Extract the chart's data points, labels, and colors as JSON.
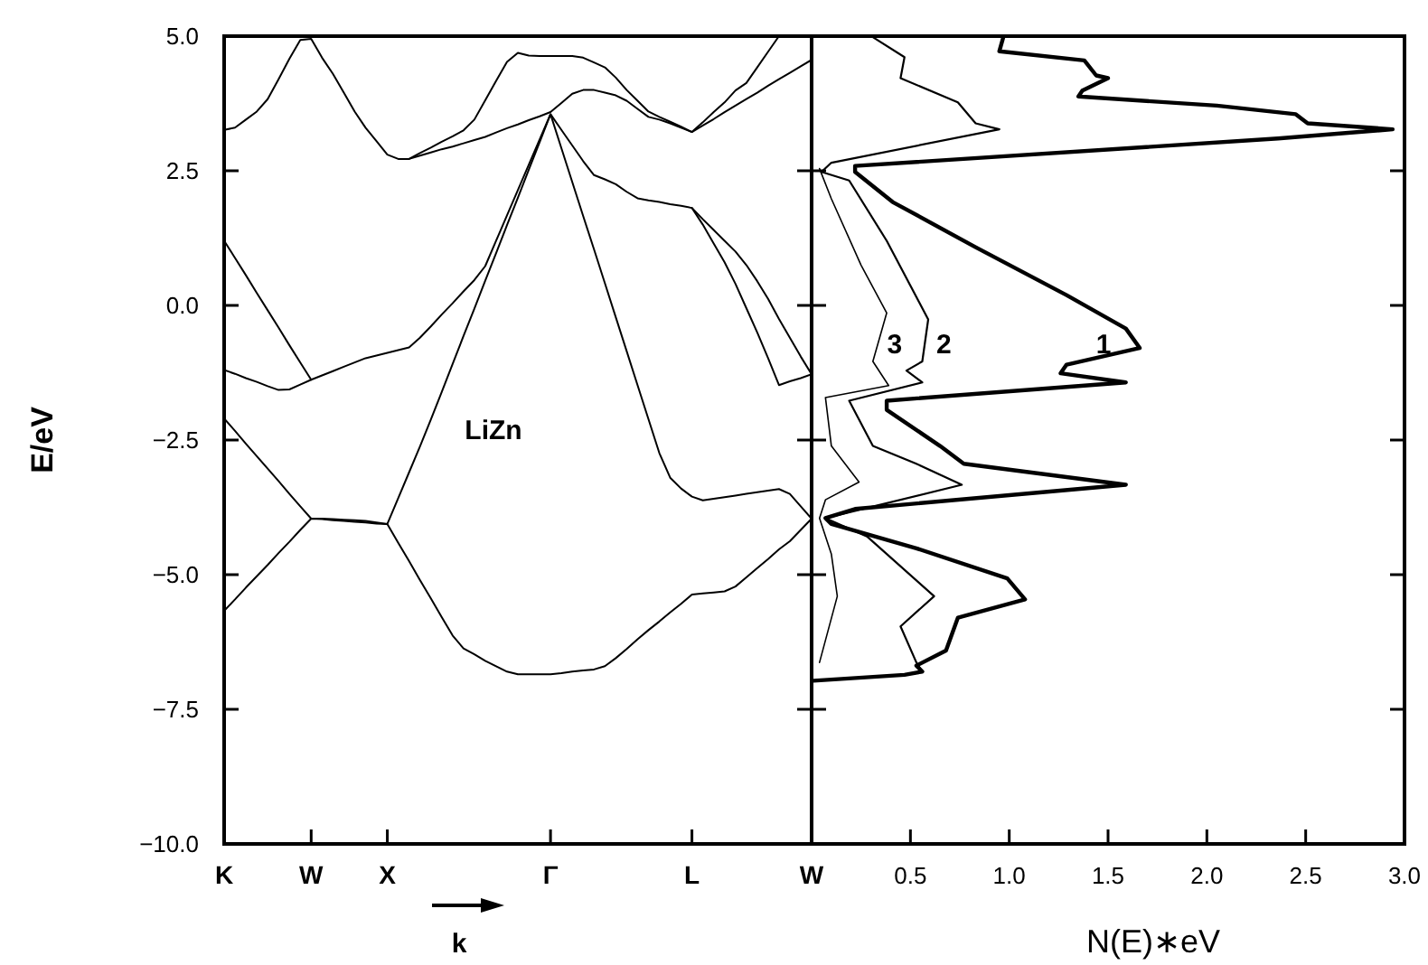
{
  "chart_data": [
    {
      "type": "line",
      "xlabel": "k",
      "ylabel": "E/eV",
      "annotations": [
        "LiZn"
      ],
      "categories": [
        "K",
        null,
        null,
        null,
        null,
        null,
        null,
        null,
        "W",
        null,
        null,
        null,
        null,
        null,
        null,
        "X",
        null,
        null,
        null,
        null,
        null,
        null,
        null,
        null,
        null,
        null,
        null,
        null,
        null,
        null,
        "Γ",
        null,
        null,
        null,
        null,
        null,
        null,
        null,
        null,
        null,
        null,
        null,
        null,
        "L",
        null,
        null,
        null,
        null,
        null,
        null,
        null,
        null,
        null,
        null,
        "W"
      ],
      "ylim": [
        -10,
        5
      ],
      "yticks": [
        {
          "value": 5,
          "label": "5.0"
        },
        {
          "value": 2.5,
          "label": "2.5"
        },
        {
          "value": 0,
          "label": "0.0"
        },
        {
          "value": -2.5,
          "label": "−2.5"
        },
        {
          "value": -5,
          "label": "−5.0"
        },
        {
          "value": -7.5,
          "label": "−7.5"
        },
        {
          "value": -10,
          "label": "−10.0"
        }
      ],
      "series": [
        {
          "color": "#000000",
          "values": [
            -5.67,
            -5.46,
            -5.24,
            -5.03,
            -4.82,
            -4.6,
            -4.39,
            -4.17,
            -3.96,
            -3.97,
            -3.99,
            -4.0,
            -4.02,
            -4.03,
            -4.05,
            -4.06,
            -4.41,
            -4.75,
            -5.1,
            -5.44,
            -5.79,
            -6.13,
            -6.37,
            -6.48,
            -6.6,
            -6.7,
            -6.8,
            -6.85,
            -6.85,
            -6.85,
            -6.85,
            -6.83,
            -6.8,
            -6.78,
            -6.76,
            -6.7,
            -6.55,
            -6.38,
            -6.2,
            -6.03,
            -5.87,
            -5.7,
            -5.54,
            -5.37,
            -5.35,
            -5.33,
            -5.31,
            -5.22,
            -5.05,
            -4.88,
            -4.71,
            -4.53,
            -4.38,
            -4.17,
            -3.96
          ]
        },
        {
          "color": "#000000",
          "values": [
            -2.1,
            -2.33,
            -2.57,
            -2.8,
            -3.03,
            -3.26,
            -3.5,
            -3.73,
            -3.96,
            -3.96,
            -3.97,
            -3.98,
            -3.99,
            -4.0,
            -4.03,
            -4.06,
            -3.58,
            -3.1,
            -2.62,
            -2.12,
            -1.61,
            -1.09,
            -0.57,
            -0.06,
            0.46,
            0.97,
            1.49,
            2.0,
            2.52,
            3.03,
            3.55,
            2.92,
            2.29,
            1.66,
            1.04,
            0.41,
            -0.22,
            -0.85,
            -1.48,
            -2.11,
            -2.74,
            -3.2,
            -3.4,
            -3.55,
            -3.62,
            -3.59,
            -3.56,
            -3.53,
            -3.5,
            -3.47,
            -3.44,
            -3.41,
            -3.5,
            -3.73,
            -3.96
          ]
        },
        {
          "color": "#000000",
          "values": [
            1.2,
            0.88,
            0.56,
            0.23,
            -0.09,
            -0.41,
            -0.74,
            -1.06,
            -1.38,
            -1.3,
            -1.22,
            -1.14,
            -1.06,
            -0.98,
            -0.93,
            -0.88,
            -0.83,
            -0.78,
            -0.6,
            -0.39,
            -0.17,
            0.04,
            0.26,
            0.47,
            0.73,
            1.2,
            1.67,
            2.14,
            2.61,
            3.08,
            3.55,
            3.26,
            2.97,
            2.68,
            2.42,
            2.34,
            2.25,
            2.11,
            1.99,
            1.95,
            1.92,
            1.88,
            1.85,
            1.81,
            1.5,
            1.15,
            0.8,
            0.4,
            -0.05,
            -0.5,
            -0.98,
            -1.48,
            -1.41,
            -1.35,
            -1.28
          ]
        },
        {
          "color": "#000000",
          "values": [
            -1.2,
            -1.27,
            -1.35,
            -1.42,
            -1.5,
            -1.57,
            -1.56,
            -1.47,
            -1.38,
            null,
            null,
            null,
            null,
            null,
            null,
            null,
            null,
            null,
            null,
            null,
            null,
            null,
            null,
            null,
            null,
            null,
            null,
            null,
            null,
            null,
            null,
            null,
            null,
            null,
            null,
            null,
            null,
            null,
            null,
            null,
            null,
            null,
            null,
            null,
            null,
            null,
            null,
            null,
            null,
            null,
            null,
            null,
            null,
            null,
            null
          ]
        },
        {
          "color": "#000000",
          "values": [
            null,
            null,
            null,
            null,
            null,
            null,
            null,
            null,
            null,
            null,
            null,
            null,
            null,
            null,
            null,
            null,
            null,
            null,
            null,
            null,
            null,
            null,
            null,
            null,
            null,
            null,
            null,
            null,
            null,
            null,
            null,
            null,
            null,
            null,
            null,
            null,
            null,
            null,
            null,
            null,
            null,
            null,
            null,
            1.81,
            1.6,
            1.4,
            1.2,
            1.0,
            0.75,
            0.45,
            0.12,
            -0.25,
            -0.6,
            -0.95,
            -1.28
          ]
        },
        {
          "color": "#000000",
          "values": [
            3.26,
            3.3,
            3.45,
            3.6,
            3.83,
            4.2,
            4.58,
            4.93,
            4.95,
            4.6,
            4.3,
            3.95,
            3.6,
            3.3,
            3.05,
            2.8,
            2.72,
            2.72,
            2.78,
            2.84,
            2.9,
            2.95,
            3.01,
            3.07,
            3.13,
            3.21,
            3.29,
            3.36,
            3.44,
            3.51,
            3.59,
            3.76,
            3.93,
            4.0,
            4.0,
            3.95,
            3.9,
            3.8,
            3.65,
            3.5,
            3.45,
            3.38,
            3.3,
            3.22,
            3.34,
            3.46,
            3.59,
            3.71,
            3.83,
            3.95,
            4.08,
            4.2,
            4.32,
            4.44,
            4.56
          ]
        },
        {
          "color": "#000000",
          "values": [
            null,
            null,
            null,
            null,
            null,
            null,
            null,
            null,
            null,
            null,
            null,
            null,
            null,
            null,
            null,
            null,
            null,
            2.72,
            2.83,
            2.93,
            3.04,
            3.14,
            3.25,
            3.45,
            3.81,
            4.17,
            4.52,
            4.69,
            4.64,
            4.63,
            4.63,
            4.63,
            4.63,
            4.6,
            4.51,
            4.42,
            4.23,
            4.0,
            3.8,
            3.6,
            3.5,
            3.41,
            3.32,
            3.22,
            3.4,
            3.59,
            3.77,
            3.99,
            4.13,
            4.42,
            4.71,
            5.0,
            null,
            null,
            null
          ]
        }
      ]
    },
    {
      "type": "line",
      "xlabel": "N(E)∗eV",
      "tick_labels": "x",
      "xlim": [
        0,
        3
      ],
      "xticks": [
        {
          "value": 0.5,
          "label": "0.5"
        },
        {
          "value": 1,
          "label": "1.0"
        },
        {
          "value": 1.5,
          "label": "1.5"
        },
        {
          "value": 2,
          "label": "2.0"
        },
        {
          "value": 2.5,
          "label": "2.5"
        },
        {
          "value": 3,
          "label": "3.0"
        }
      ],
      "ylim": [
        -10,
        5
      ],
      "yticks": [
        5,
        2.5,
        0,
        -2.5,
        -5,
        -7.5,
        -10
      ],
      "series": [
        {
          "name": "1",
          "color": "#000000",
          "x": [
            0.97,
            0.95,
            1.38,
            1.44,
            1.5,
            1.37,
            1.35,
            2.05,
            2.45,
            2.51,
            2.94,
            2.36,
            0.22,
            0.22,
            0.41,
            0.83,
            1.29,
            1.59,
            1.66,
            1.29,
            1.26,
            1.59,
            0.38,
            0.38,
            0.65,
            0.77,
            1.59,
            0.22,
            0.07,
            0.1,
            0.53,
            0.99,
            1.08,
            0.74,
            0.68,
            0.53,
            0.56,
            0.47,
            0.01
          ],
          "values": [
            4.98,
            4.72,
            4.55,
            4.27,
            4.22,
            3.99,
            3.88,
            3.71,
            3.55,
            3.38,
            3.27,
            3.1,
            2.59,
            2.48,
            1.92,
            1.08,
            0.19,
            -0.43,
            -0.79,
            -1.1,
            -1.26,
            -1.43,
            -1.77,
            -1.94,
            -2.61,
            -2.94,
            -3.33,
            -3.78,
            -3.95,
            -4.06,
            -4.51,
            -5.07,
            -5.46,
            -5.8,
            -6.41,
            -6.69,
            -6.8,
            -6.86,
            -6.97
          ]
        },
        {
          "name": "2",
          "color": "#000000",
          "x": [
            0.31,
            0.47,
            0.45,
            0.74,
            0.83,
            0.95,
            0.1,
            0.05,
            0.19,
            0.38,
            0.59,
            0.56,
            0.48,
            0.56,
            0.19,
            0.31,
            0.53,
            0.76,
            0.07,
            0.28,
            0.62,
            0.45,
            0.53,
            0.56
          ],
          "values": [
            4.98,
            4.61,
            4.22,
            3.77,
            3.38,
            3.27,
            2.65,
            2.48,
            2.32,
            1.2,
            -0.26,
            -1.04,
            -1.21,
            -1.43,
            -1.77,
            -2.61,
            -2.94,
            -3.33,
            -3.95,
            -4.29,
            -5.4,
            -5.96,
            -6.63,
            -6.8
          ]
        },
        {
          "name": "3",
          "color": "#000000",
          "x": [
            0.04,
            0.1,
            0.25,
            0.38,
            0.31,
            0.39,
            0.07,
            0.1,
            0.24,
            0.07,
            0.04,
            0.1,
            0.13,
            0.04
          ],
          "values": [
            2.54,
            1.98,
            0.75,
            -0.14,
            -1.04,
            -1.49,
            -1.71,
            -2.61,
            -3.28,
            -3.61,
            -3.95,
            -4.62,
            -5.4,
            -6.63
          ]
        }
      ]
    }
  ]
}
